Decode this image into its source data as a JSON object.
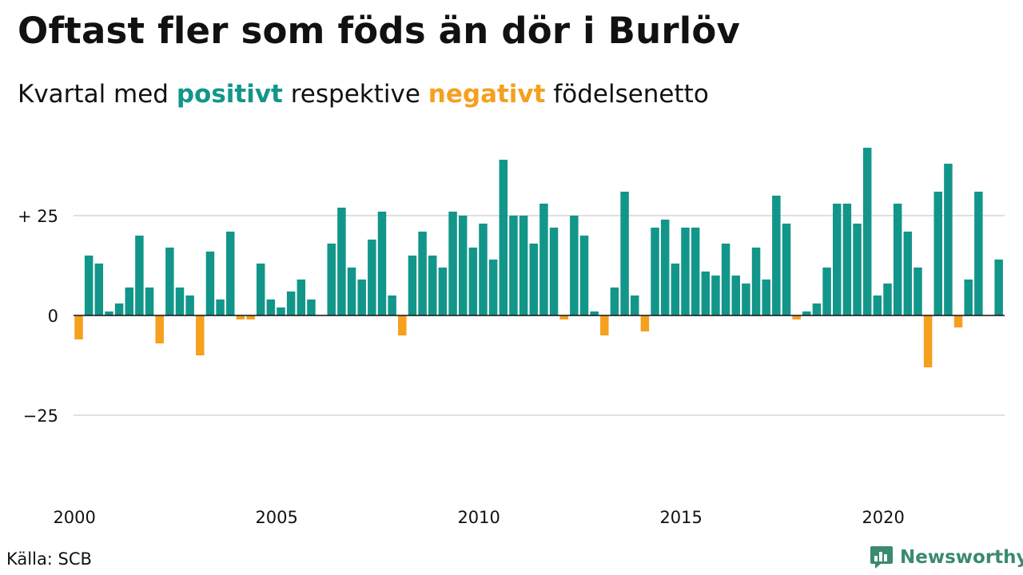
{
  "title": "Oftast fler som föds än dör i Burlöv",
  "subtitle": {
    "part1": "Kvartal med ",
    "positive": "positivt",
    "part2": " respektive ",
    "negative": "negativt",
    "part3": " födelsenetto"
  },
  "colors": {
    "positive": "#13968a",
    "negative": "#f5a01f",
    "grid": "#e0e0e0",
    "zero": "#111111",
    "brand": "#3a8a6e"
  },
  "source": "Källa: SCB",
  "brand": {
    "name": "Newsworthy",
    "icon": "bar-chart-speech-bubble-logo"
  },
  "chart_data": {
    "type": "bar",
    "x_start": "2000 Q1",
    "frequency": "quarterly",
    "values": [
      -6,
      15,
      13,
      1,
      3,
      7,
      20,
      7,
      -7,
      17,
      7,
      5,
      -10,
      16,
      4,
      21,
      -1,
      -1,
      13,
      4,
      2,
      6,
      9,
      4,
      0,
      18,
      27,
      12,
      9,
      19,
      26,
      5,
      -5,
      15,
      21,
      15,
      12,
      26,
      25,
      17,
      23,
      14,
      39,
      25,
      25,
      18,
      28,
      22,
      -1,
      25,
      20,
      1,
      -5,
      7,
      31,
      5,
      -4,
      22,
      24,
      13,
      22,
      22,
      11,
      10,
      18,
      10,
      8,
      17,
      9,
      30,
      23,
      -1,
      1,
      3,
      12,
      28,
      28,
      23,
      42,
      5,
      8,
      28,
      21,
      12,
      -13,
      31,
      38,
      -3,
      9,
      31,
      0,
      14
    ],
    "yticks": [
      {
        "value": 25,
        "label": "+ 25"
      },
      {
        "value": 0,
        "label": "0"
      },
      {
        "value": -25,
        "label": "−25"
      }
    ],
    "xticks": [
      {
        "year": 2000,
        "label": "2000"
      },
      {
        "year": 2005,
        "label": "2005"
      },
      {
        "year": 2010,
        "label": "2010"
      },
      {
        "year": 2015,
        "label": "2015"
      },
      {
        "year": 2020,
        "label": "2020"
      }
    ],
    "ylim": [
      -42,
      46
    ],
    "grid": true,
    "legend": "in subtitle"
  }
}
